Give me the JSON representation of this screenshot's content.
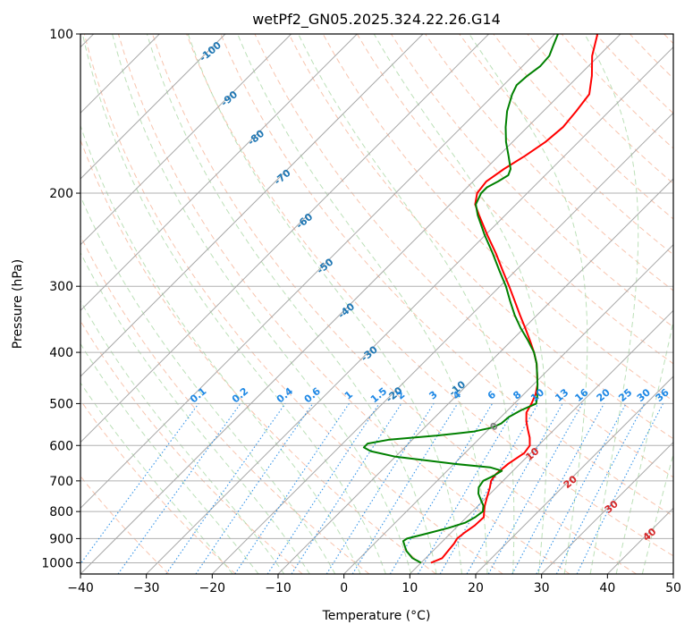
{
  "chart_data": {
    "type": "line",
    "title": "wetPf2_GN05.2025.324.22.26.G14",
    "xlabel": "Temperature (°C)",
    "ylabel": "Pressure (hPa)",
    "xlim": [
      -40,
      50
    ],
    "ylim": [
      1050,
      100
    ],
    "y_scale": "log",
    "grid": true,
    "x_ticks": [
      -40,
      -30,
      -20,
      -10,
      0,
      10,
      20,
      30,
      40,
      50
    ],
    "y_ticks": [
      100,
      200,
      300,
      400,
      500,
      600,
      700,
      800,
      900,
      1000
    ],
    "colors": {
      "temperature": "#ff0000",
      "dewpoint": "#008000",
      "grid": "#b0b0b0",
      "isotherm": "#a8a8a8",
      "dry_adiabat": "#f4a582",
      "moist_adiabat": "#a6d6a0",
      "mixing_ratio": "#1e88e5",
      "isotherm_label": "#1f77b4",
      "moist_label": "#d62728",
      "zero_label": "#808080"
    },
    "series": [
      {
        "name": "Temperature",
        "color": "#ff0000",
        "points": [
          [
            1000,
            11.5
          ],
          [
            980,
            12.5
          ],
          [
            950,
            12.3
          ],
          [
            920,
            12.1
          ],
          [
            900,
            11.8
          ],
          [
            880,
            12.0
          ],
          [
            850,
            12.5
          ],
          [
            820,
            12.6
          ],
          [
            800,
            11.8
          ],
          [
            780,
            11.0
          ],
          [
            750,
            10.0
          ],
          [
            720,
            9.0
          ],
          [
            700,
            8.2
          ],
          [
            680,
            7.9
          ],
          [
            650,
            8.2
          ],
          [
            620,
            9.0
          ],
          [
            600,
            8.7
          ],
          [
            580,
            7.5
          ],
          [
            560,
            6.0
          ],
          [
            540,
            4.5
          ],
          [
            520,
            3.2
          ],
          [
            500,
            2.6
          ],
          [
            480,
            1.8
          ],
          [
            460,
            0.6
          ],
          [
            440,
            -1.0
          ],
          [
            420,
            -2.7
          ],
          [
            400,
            -4.8
          ],
          [
            380,
            -7.2
          ],
          [
            360,
            -9.8
          ],
          [
            340,
            -12.6
          ],
          [
            320,
            -15.5
          ],
          [
            300,
            -18.6
          ],
          [
            280,
            -22.0
          ],
          [
            260,
            -25.6
          ],
          [
            240,
            -29.7
          ],
          [
            220,
            -34.0
          ],
          [
            210,
            -36.2
          ],
          [
            200,
            -37.6
          ],
          [
            190,
            -38.0
          ],
          [
            180,
            -37.2
          ],
          [
            170,
            -36.0
          ],
          [
            160,
            -35.0
          ],
          [
            150,
            -34.6
          ],
          [
            140,
            -35.0
          ],
          [
            130,
            -35.6
          ],
          [
            120,
            -38.0
          ],
          [
            110,
            -41.0
          ],
          [
            100,
            -43.5
          ]
        ]
      },
      {
        "name": "Dewpoint",
        "color": "#008000",
        "points": [
          [
            1000,
            10.0
          ],
          [
            980,
            8.0
          ],
          [
            950,
            6.0
          ],
          [
            930,
            5.0
          ],
          [
            910,
            4.0
          ],
          [
            900,
            4.2
          ],
          [
            880,
            6.5
          ],
          [
            860,
            8.8
          ],
          [
            840,
            10.6
          ],
          [
            820,
            11.3
          ],
          [
            800,
            11.6
          ],
          [
            780,
            10.8
          ],
          [
            760,
            9.5
          ],
          [
            740,
            8.2
          ],
          [
            720,
            7.3
          ],
          [
            700,
            7.0
          ],
          [
            685,
            7.8
          ],
          [
            670,
            8.3
          ],
          [
            660,
            6.0
          ],
          [
            650,
            0.0
          ],
          [
            640,
            -5.0
          ],
          [
            630,
            -10.0
          ],
          [
            615,
            -14.6
          ],
          [
            605,
            -16.2
          ],
          [
            595,
            -16.2
          ],
          [
            585,
            -13.5
          ],
          [
            575,
            -7.0
          ],
          [
            565,
            -2.0
          ],
          [
            555,
            0.3
          ],
          [
            545,
            1.0
          ],
          [
            530,
            1.2
          ],
          [
            515,
            2.0
          ],
          [
            500,
            3.3
          ],
          [
            485,
            2.4
          ],
          [
            460,
            0.6
          ],
          [
            440,
            -1.0
          ],
          [
            420,
            -2.7
          ],
          [
            400,
            -4.8
          ],
          [
            380,
            -7.5
          ],
          [
            360,
            -10.5
          ],
          [
            340,
            -13.4
          ],
          [
            320,
            -16.2
          ],
          [
            300,
            -19.1
          ],
          [
            280,
            -22.5
          ],
          [
            260,
            -26.1
          ],
          [
            240,
            -30.1
          ],
          [
            220,
            -34.2
          ],
          [
            210,
            -36.1
          ],
          [
            200,
            -37.0
          ],
          [
            195,
            -37.0
          ],
          [
            190,
            -36.2
          ],
          [
            185,
            -35.6
          ],
          [
            180,
            -36.2
          ],
          [
            170,
            -38.5
          ],
          [
            160,
            -41.0
          ],
          [
            150,
            -43.3
          ],
          [
            140,
            -45.5
          ],
          [
            130,
            -47.3
          ],
          [
            125,
            -48.0
          ],
          [
            120,
            -47.8
          ],
          [
            115,
            -47.3
          ],
          [
            110,
            -47.5
          ],
          [
            105,
            -48.5
          ],
          [
            100,
            -49.5
          ]
        ]
      }
    ],
    "isotherm_labels": [
      "-100",
      "-90",
      "-80",
      "-70",
      "-60",
      "-50",
      "-40",
      "-30",
      "-20",
      "-10",
      "0",
      "10",
      "20",
      "30",
      "40"
    ],
    "mixing_ratio_labels": [
      "0.1",
      "0.2",
      "0.4",
      "0.6",
      "1",
      "1.5",
      "2",
      "3",
      "4",
      "6",
      "8",
      "10",
      "13",
      "16",
      "20",
      "25",
      "30",
      "36"
    ]
  }
}
